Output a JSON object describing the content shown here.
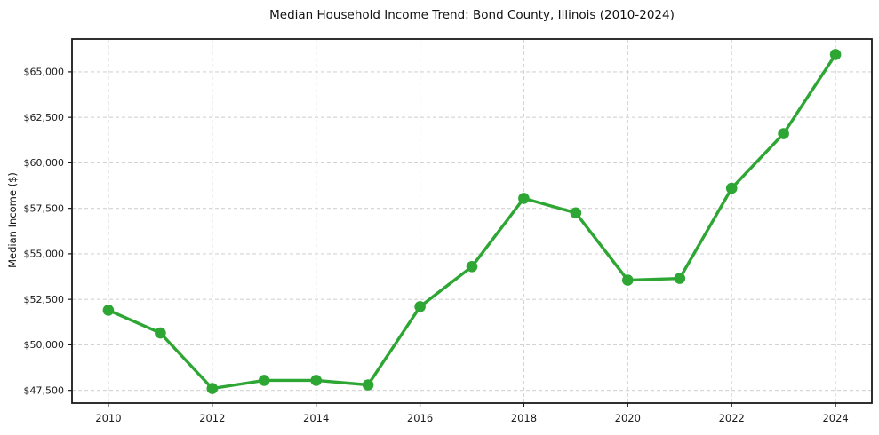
{
  "chart_data": {
    "type": "line",
    "title": "Median Household Income Trend: Bond County, Illinois (2010-2024)",
    "xlabel": "",
    "ylabel": "Median Income ($)",
    "x": [
      2010,
      2011,
      2012,
      2013,
      2014,
      2015,
      2016,
      2017,
      2018,
      2019,
      2020,
      2021,
      2022,
      2023,
      2024
    ],
    "values": [
      51900,
      50650,
      47600,
      48050,
      48050,
      47800,
      52100,
      54300,
      58050,
      57250,
      53550,
      53650,
      58600,
      61600,
      65950
    ],
    "x_ticks": [
      2010,
      2012,
      2014,
      2016,
      2018,
      2020,
      2022,
      2024
    ],
    "y_ticks": [
      47500,
      50000,
      52500,
      55000,
      57500,
      60000,
      62500,
      65000
    ],
    "y_tick_prefix": "$",
    "xlim": [
      2009.3,
      2024.7
    ],
    "ylim": [
      46800,
      66800
    ],
    "grid": true,
    "grid_style": "dashed",
    "legend": "none",
    "marker": "circle",
    "colors": {
      "line": "#2da634",
      "marker": "#2da634",
      "grid": "#d3d3d3",
      "spine": "#1a1a1a",
      "text": "#1a1a1a",
      "background": "#ffffff"
    }
  }
}
